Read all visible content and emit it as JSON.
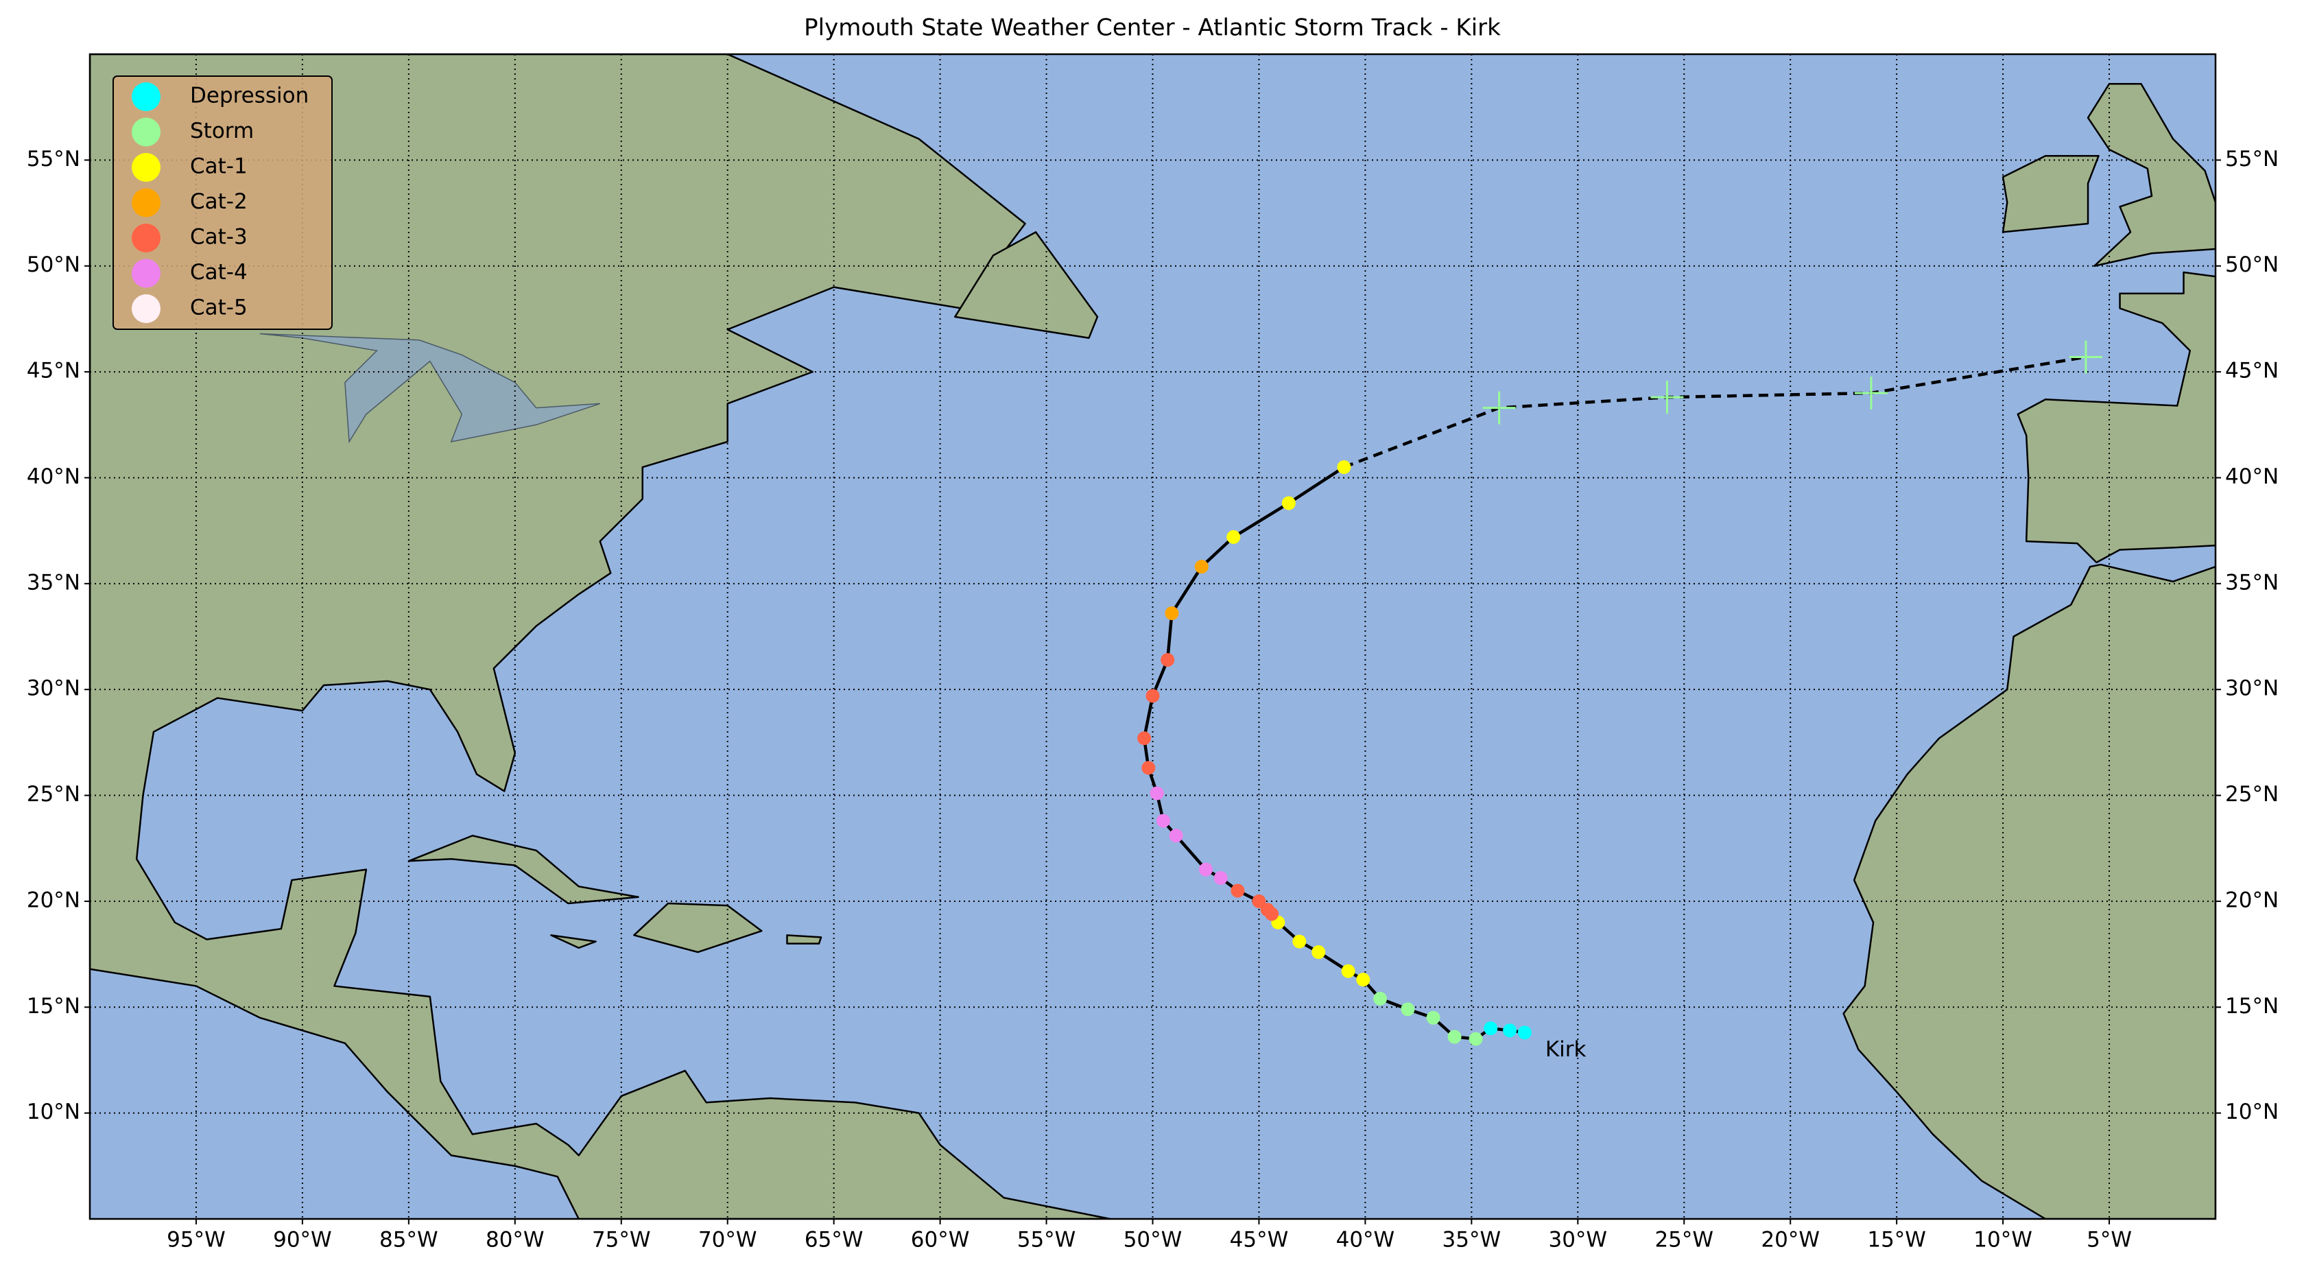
{
  "chart_data": {
    "type": "map",
    "title": "Plymouth State Weather Center - Atlantic Storm Track - Kirk",
    "xlim": [
      -100,
      0
    ],
    "ylim": [
      5,
      60
    ],
    "xticks": [
      {
        "value": -95,
        "label": "95°W"
      },
      {
        "value": -90,
        "label": "90°W"
      },
      {
        "value": -85,
        "label": "85°W"
      },
      {
        "value": -80,
        "label": "80°W"
      },
      {
        "value": -75,
        "label": "75°W"
      },
      {
        "value": -70,
        "label": "70°W"
      },
      {
        "value": -65,
        "label": "65°W"
      },
      {
        "value": -60,
        "label": "60°W"
      },
      {
        "value": -55,
        "label": "55°W"
      },
      {
        "value": -50,
        "label": "50°W"
      },
      {
        "value": -45,
        "label": "45°W"
      },
      {
        "value": -40,
        "label": "40°W"
      },
      {
        "value": -35,
        "label": "35°W"
      },
      {
        "value": -30,
        "label": "30°W"
      },
      {
        "value": -25,
        "label": "25°W"
      },
      {
        "value": -20,
        "label": "20°W"
      },
      {
        "value": -15,
        "label": "15°W"
      },
      {
        "value": -10,
        "label": "10°W"
      },
      {
        "value": -5,
        "label": "5°W"
      }
    ],
    "yticks": [
      {
        "value": 10,
        "label": "10°N"
      },
      {
        "value": 15,
        "label": "15°N"
      },
      {
        "value": 20,
        "label": "20°N"
      },
      {
        "value": 25,
        "label": "25°N"
      },
      {
        "value": 30,
        "label": "30°N"
      },
      {
        "value": 35,
        "label": "35°N"
      },
      {
        "value": 40,
        "label": "40°N"
      },
      {
        "value": 45,
        "label": "45°N"
      },
      {
        "value": 50,
        "label": "50°N"
      },
      {
        "value": 55,
        "label": "55°N"
      }
    ],
    "grid": true,
    "legend": "upper left",
    "series": [
      {
        "name": "Depression",
        "color": "#00ffff"
      },
      {
        "name": "Storm",
        "color": "#98fb98"
      },
      {
        "name": "Cat-1",
        "color": "#ffff00"
      },
      {
        "name": "Cat-2",
        "color": "#ffa500"
      },
      {
        "name": "Cat-3",
        "color": "#ff6347"
      },
      {
        "name": "Cat-4",
        "color": "#ee82ee"
      },
      {
        "name": "Cat-5",
        "color": "#fff0f5"
      }
    ],
    "track": {
      "x": [
        -32.5,
        -33.2,
        -34.1,
        -34.8,
        -35.8,
        -36.8,
        -38.0,
        -39.3,
        -40.1,
        -40.8,
        -42.2,
        -43.1,
        -44.1,
        -44.4,
        -44.6,
        -45.0,
        -46.0,
        -46.8,
        -47.5,
        -48.9,
        -49.5,
        -49.8,
        -50.2,
        -50.4,
        -50.0,
        -49.3,
        -49.1,
        -47.7,
        -46.2,
        -43.6,
        -41.0
      ],
      "y": [
        13.8,
        13.9,
        14.0,
        13.5,
        13.6,
        14.5,
        14.9,
        15.4,
        16.3,
        16.7,
        17.6,
        18.1,
        19.0,
        19.4,
        19.6,
        20.0,
        20.5,
        21.1,
        21.5,
        23.1,
        23.8,
        25.1,
        26.3,
        27.7,
        29.7,
        31.4,
        33.6,
        35.8,
        37.2,
        38.8,
        40.5
      ],
      "class": [
        "Depression",
        "Depression",
        "Depression",
        "Storm",
        "Storm",
        "Storm",
        "Storm",
        "Storm",
        "Cat-1",
        "Cat-1",
        "Cat-1",
        "Cat-1",
        "Cat-1",
        "Cat-3",
        "Cat-3",
        "Cat-3",
        "Cat-3",
        "Cat-4",
        "Cat-4",
        "Cat-4",
        "Cat-4",
        "Cat-4",
        "Cat-3",
        "Cat-3",
        "Cat-3",
        "Cat-3",
        "Cat-2",
        "Cat-2",
        "Cat-1",
        "Cat-1",
        "Cat-1"
      ]
    },
    "forecast": {
      "x": [
        -33.7,
        -25.8,
        -16.2,
        -6.1
      ],
      "y": [
        43.3,
        43.8,
        44.0,
        45.7
      ],
      "color": "#98fb98"
    },
    "annotation": "Kirk"
  }
}
